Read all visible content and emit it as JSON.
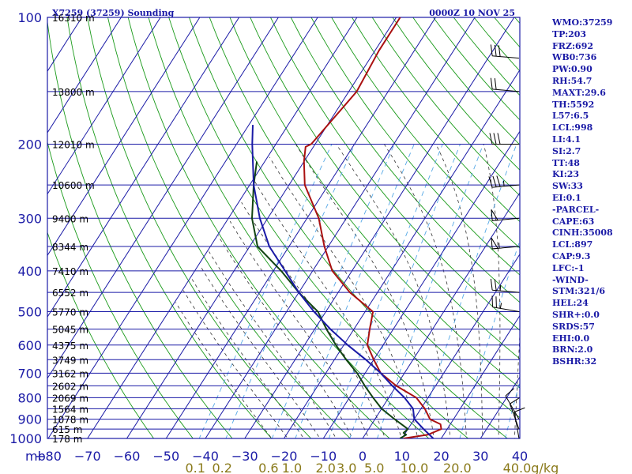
{
  "header": {
    "title_left": "X7259 (37259) Sounding",
    "title_right": "0000Z 10 NOV 25"
  },
  "colors": {
    "frame": "#1a1aa6",
    "dry_adiabat": "#1a9a1a",
    "moist_adiabat": "#333333",
    "mixing_ratio": "#55a8e6",
    "temperature": "#aa1111",
    "dewpoint": "#114411",
    "parcel": "#1a1aa6",
    "mixing_label": "#8a7a1a"
  },
  "params": [
    "WMO:37259",
    "TP:203",
    "FRZ:692",
    "WB0:736",
    "PW:0.90",
    "RH:54.7",
    "MAXT:29.6",
    "TH:5592",
    "L57:6.5",
    "LCL:998",
    "LI:4.1",
    "SI:2.7",
    "TT:48",
    "KI:23",
    "SW:33",
    "EI:0.1",
    "-PARCEL-",
    "CAPE:63",
    "CINH:35008",
    "LCL:897",
    "CAP:9.3",
    "LFC:-1",
    "-WIND-",
    "STM:321/6",
    "HEL:24",
    "SHR+:0.0",
    "SRDS:57",
    "EHI:0.0",
    "BRN:2.0",
    "BSHR:32"
  ],
  "chart_data": {
    "type": "line",
    "chart_kind": "skew-T log-P sounding",
    "y_scale": "log",
    "ylim": [
      1000,
      100
    ],
    "xlim": [
      -80,
      40
    ],
    "y_unit_label": "mb",
    "y_ticks": [
      100,
      200,
      300,
      400,
      500,
      600,
      700,
      800,
      900,
      1000
    ],
    "x_ticks": [
      -80,
      -70,
      -60,
      -50,
      -40,
      -30,
      -20,
      -10,
      0,
      10,
      20,
      30,
      40
    ],
    "extra_pressure_lines": [
      150,
      250,
      350,
      450,
      550,
      650,
      750,
      850,
      950
    ],
    "mixing_ratio_labels": [
      "0.1",
      "0.2",
      "0.6",
      "1.0",
      "2.0",
      "3.0",
      "5.0",
      "10.0",
      "20.0",
      "40.0g/kg"
    ],
    "mixing_ratio_values": [
      0.1,
      0.2,
      0.6,
      1.0,
      2.0,
      3.0,
      5.0,
      10.0,
      20.0,
      40.0
    ],
    "heights": [
      {
        "p": 100,
        "label": "16310 m"
      },
      {
        "p": 150,
        "label": "13800 m"
      },
      {
        "p": 200,
        "label": "12010 m"
      },
      {
        "p": 250,
        "label": "10600 m"
      },
      {
        "p": 300,
        "label": "9400 m"
      },
      {
        "p": 350,
        "label": "8344 m"
      },
      {
        "p": 400,
        "label": "7410 m"
      },
      {
        "p": 450,
        "label": "6552 m"
      },
      {
        "p": 500,
        "label": "5770 m"
      },
      {
        "p": 550,
        "label": "5045 m"
      },
      {
        "p": 600,
        "label": "4375 m"
      },
      {
        "p": 650,
        "label": "3749 m"
      },
      {
        "p": 700,
        "label": "3162 m"
      },
      {
        "p": 750,
        "label": "2602 m"
      },
      {
        "p": 800,
        "label": "2069 m"
      },
      {
        "p": 850,
        "label": "1564 m"
      },
      {
        "p": 900,
        "label": "1078 m"
      },
      {
        "p": 950,
        "label": "615 m"
      },
      {
        "p": 1000,
        "label": "178 m"
      }
    ],
    "series": [
      {
        "role": "temperature",
        "points": [
          [
            1000,
            10.4
          ],
          [
            980,
            16
          ],
          [
            950,
            18.5
          ],
          [
            925,
            17.5
          ],
          [
            900,
            14
          ],
          [
            850,
            11
          ],
          [
            800,
            7
          ],
          [
            750,
            0
          ],
          [
            700,
            -6
          ],
          [
            650,
            -10
          ],
          [
            600,
            -14
          ],
          [
            550,
            -16
          ],
          [
            500,
            -18
          ],
          [
            450,
            -27
          ],
          [
            400,
            -35
          ],
          [
            350,
            -41
          ],
          [
            300,
            -47
          ],
          [
            250,
            -56
          ],
          [
            220,
            -60
          ],
          [
            203,
            -62
          ],
          [
            200,
            -61
          ],
          [
            150,
            -58
          ],
          [
            120,
            -59
          ],
          [
            100,
            -59
          ]
        ]
      },
      {
        "role": "dewpoint",
        "points": [
          [
            1000,
            9.5
          ],
          [
            980,
            10.5
          ],
          [
            970,
            9.5
          ],
          [
            950,
            10
          ],
          [
            900,
            5
          ],
          [
            850,
            0
          ],
          [
            800,
            -4
          ],
          [
            750,
            -8
          ],
          [
            700,
            -12
          ],
          [
            650,
            -17
          ],
          [
            600,
            -22
          ],
          [
            550,
            -27
          ],
          [
            500,
            -32
          ],
          [
            450,
            -40
          ],
          [
            400,
            -48
          ],
          [
            350,
            -58
          ],
          [
            300,
            -64
          ],
          [
            250,
            -69
          ],
          [
            220,
            -72
          ]
        ]
      },
      {
        "role": "parcel",
        "points": [
          [
            1000,
            18
          ],
          [
            950,
            14
          ],
          [
            900,
            10
          ],
          [
            850,
            8
          ],
          [
            800,
            4
          ],
          [
            750,
            -1
          ],
          [
            700,
            -6
          ],
          [
            650,
            -12
          ],
          [
            600,
            -19
          ],
          [
            550,
            -26
          ],
          [
            500,
            -33
          ],
          [
            450,
            -40
          ],
          [
            400,
            -47
          ],
          [
            350,
            -55
          ],
          [
            300,
            -62
          ],
          [
            250,
            -69
          ],
          [
            200,
            -76
          ],
          [
            180,
            -79
          ]
        ]
      }
    ],
    "wind_barbs": [
      {
        "p": 1000,
        "dir": 350,
        "kt": 10
      },
      {
        "p": 950,
        "dir": 340,
        "kt": 10
      },
      {
        "p": 900,
        "dir": 330,
        "kt": 10
      },
      {
        "p": 500,
        "dir": 280,
        "kt": 25
      },
      {
        "p": 450,
        "dir": 275,
        "kt": 25
      },
      {
        "p": 350,
        "dir": 265,
        "kt": 55
      },
      {
        "p": 300,
        "dir": 265,
        "kt": 50
      },
      {
        "p": 250,
        "dir": 265,
        "kt": 35
      },
      {
        "p": 200,
        "dir": 270,
        "kt": 30
      },
      {
        "p": 150,
        "dir": 275,
        "kt": 20
      },
      {
        "p": 125,
        "dir": 275,
        "kt": 30
      }
    ]
  }
}
